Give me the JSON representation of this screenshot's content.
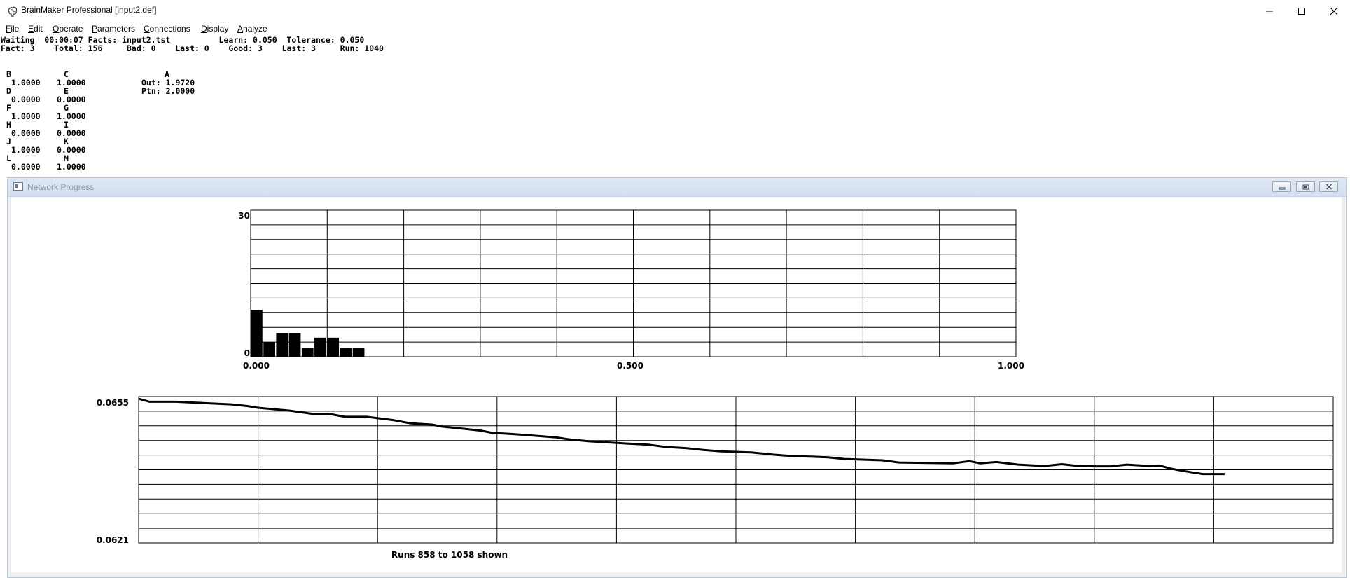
{
  "window": {
    "title": "BrainMaker Professional [input2.def]",
    "icon": "brain-icon",
    "controls": [
      "minimize-icon",
      "maximize-icon",
      "close-icon"
    ]
  },
  "menu": [
    "File",
    "Edit",
    "Operate",
    "Parameters",
    "Connections",
    "Display",
    "Analyze"
  ],
  "status": {
    "line1": "Waiting  00:00:07 Facts: input2.tst          Learn: 0.050  Tolerance: 0.050",
    "line2": "Fact: 3    Total: 156     Bad: 0    Last: 0    Good: 3    Last: 3     Run: 1040"
  },
  "neurons": {
    "inputs": [
      {
        "name": "B",
        "value": "1.0000"
      },
      {
        "name": "C",
        "value": "1.0000"
      },
      {
        "name": "D",
        "value": "0.0000"
      },
      {
        "name": "E",
        "value": "0.0000"
      },
      {
        "name": "F",
        "value": "1.0000"
      },
      {
        "name": "G",
        "value": "1.0000"
      },
      {
        "name": "H",
        "value": "0.0000"
      },
      {
        "name": "I",
        "value": "0.0000"
      },
      {
        "name": "J",
        "value": "1.0000"
      },
      {
        "name": "K",
        "value": "0.0000"
      },
      {
        "name": "L",
        "value": "0.0000"
      },
      {
        "name": "M",
        "value": "1.0000"
      }
    ],
    "output": {
      "name": "A",
      "out": "Out: 1.9720",
      "ptn": "Ptn: 2.0000"
    }
  },
  "progress_window": {
    "title": "Network Progress",
    "icon": "chart-window-icon",
    "controls": [
      "minimize-icon",
      "restore-icon",
      "close-icon"
    ]
  },
  "chart_data": [
    {
      "type": "bar",
      "title": "",
      "xlim": [
        0.0,
        1.0
      ],
      "ylim": [
        0,
        30
      ],
      "x_tick_labels": [
        "0.000",
        "0.500",
        "1.000"
      ],
      "y_tick_labels": [
        "30",
        "0"
      ],
      "grid": true,
      "x": [
        0.0,
        0.0167,
        0.0333,
        0.05,
        0.0667,
        0.0833,
        0.1,
        0.1167,
        0.1333
      ],
      "values": [
        9.6,
        3.0,
        4.8,
        4.8,
        1.8,
        3.9,
        3.9,
        1.8,
        1.8
      ]
    },
    {
      "type": "line",
      "title": "",
      "xlabel": "Runs 858 to 1058 shown",
      "ylim": [
        0.0621,
        0.0655
      ],
      "y_tick_labels": [
        "0.0655",
        "0.0621"
      ],
      "xlim": [
        858,
        1058
      ],
      "grid": true,
      "x": [
        858,
        860,
        865,
        875,
        878,
        880,
        886,
        890,
        893,
        896,
        900,
        905,
        908,
        912,
        914,
        918,
        921,
        923,
        928,
        935,
        937,
        941,
        945,
        952,
        955,
        959,
        962,
        965,
        971,
        975,
        978,
        985,
        988,
        995,
        998,
        1008,
        1011,
        1013,
        1016,
        1020,
        1023,
        1025,
        1028,
        1031,
        1034,
        1037,
        1040,
        1044,
        1046,
        1048,
        1050,
        1052,
        1054,
        1058
      ],
      "values": [
        0.06545,
        0.06538,
        0.06538,
        0.06532,
        0.06528,
        0.06524,
        0.06517,
        0.0651,
        0.0651,
        0.06503,
        0.06503,
        0.06495,
        0.06488,
        0.06485,
        0.0648,
        0.06475,
        0.06471,
        0.06466,
        0.06462,
        0.06455,
        0.06451,
        0.06446,
        0.06443,
        0.06438,
        0.06433,
        0.0643,
        0.06426,
        0.06423,
        0.0642,
        0.06415,
        0.06412,
        0.06409,
        0.06405,
        0.06402,
        0.06397,
        0.06395,
        0.064,
        0.06395,
        0.06398,
        0.06392,
        0.0639,
        0.06389,
        0.06393,
        0.06389,
        0.06388,
        0.06388,
        0.06392,
        0.06389,
        0.0639,
        0.06383,
        0.06378,
        0.06374,
        0.0637,
        0.0637
      ]
    }
  ]
}
